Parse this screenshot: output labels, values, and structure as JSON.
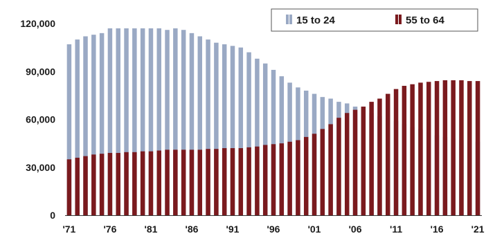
{
  "chart_data": {
    "type": "bar",
    "title": "",
    "xlabel": "",
    "ylabel": "",
    "ylim": [
      0,
      120000
    ],
    "y_ticks": [
      "0",
      "30,000",
      "60,000",
      "90,000",
      "120,000"
    ],
    "x_tick_labels": [
      "'71",
      "'76",
      "'81",
      "'86",
      "'91",
      "'96",
      "'01",
      "'06",
      "'11",
      "'16",
      "'21"
    ],
    "legend_position": "top-right",
    "grid": false,
    "categories": [
      "1971",
      "1972",
      "1973",
      "1974",
      "1975",
      "1976",
      "1977",
      "1978",
      "1979",
      "1980",
      "1981",
      "1982",
      "1983",
      "1984",
      "1985",
      "1986",
      "1987",
      "1988",
      "1989",
      "1990",
      "1991",
      "1992",
      "1993",
      "1994",
      "1995",
      "1996",
      "1997",
      "1998",
      "1999",
      "2000",
      "2001",
      "2002",
      "2003",
      "2004",
      "2005",
      "2006",
      "2007",
      "2008",
      "2009",
      "2010",
      "2011",
      "2012",
      "2013",
      "2014",
      "2015",
      "2016",
      "2017",
      "2018",
      "2019",
      "2020",
      "2021"
    ],
    "series": [
      {
        "name": "15 to 24",
        "color": "#9aa9c4",
        "values": [
          107000,
          110000,
          112000,
          113000,
          114000,
          117000,
          117000,
          117000,
          117000,
          117000,
          117000,
          117000,
          116000,
          117000,
          116000,
          114000,
          112000,
          110000,
          108000,
          107000,
          106000,
          105000,
          102000,
          98000,
          95000,
          91000,
          87000,
          83000,
          80000,
          78000,
          76000,
          74000,
          73000,
          71000,
          70000,
          68000,
          66000,
          64000,
          62000,
          61000,
          59000,
          57000,
          55000,
          54000,
          52000,
          50000,
          49000,
          48000,
          47000,
          47000,
          46000
        ]
      },
      {
        "name": "55 to 64",
        "color": "#7a1a1e",
        "values": [
          35000,
          36000,
          37000,
          38000,
          38500,
          39000,
          39000,
          39500,
          39500,
          40000,
          40000,
          40500,
          41000,
          41000,
          41000,
          41000,
          41000,
          41500,
          41500,
          42000,
          42000,
          42000,
          42500,
          43000,
          44000,
          44500,
          45000,
          46000,
          47000,
          49000,
          51000,
          54000,
          57000,
          61000,
          64000,
          66000,
          68000,
          71000,
          73000,
          76000,
          79000,
          81000,
          82000,
          83000,
          83500,
          84000,
          84500,
          84500,
          84500,
          84000,
          84000
        ]
      }
    ]
  }
}
